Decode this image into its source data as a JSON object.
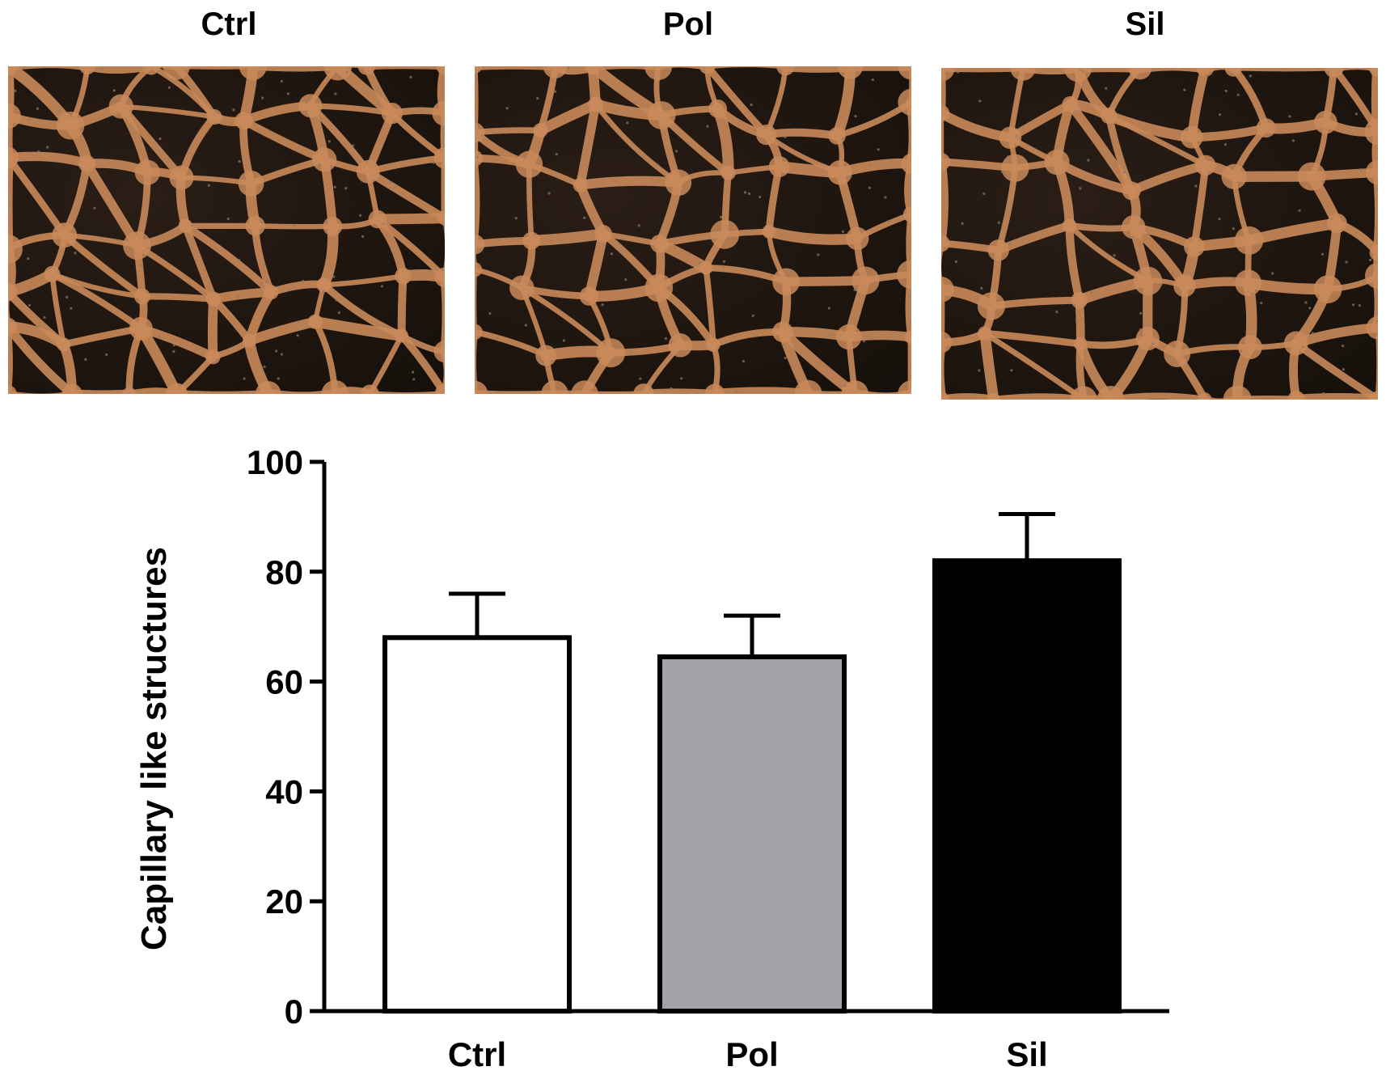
{
  "micrographs": [
    {
      "label": "Ctrl"
    },
    {
      "label": "Pol"
    },
    {
      "label": "Sil"
    }
  ],
  "colors": {
    "network": "#c98a5a",
    "background": "#1f1610",
    "ctrl_fill": "#ffffff",
    "pol_fill": "#a3a2a7",
    "sil_fill": "#000000",
    "stroke": "#000000"
  },
  "chart_data": {
    "type": "bar",
    "title": "",
    "xlabel": "",
    "ylabel": "Capillary like structures",
    "categories": [
      "Ctrl",
      "Pol",
      "Sil"
    ],
    "values": [
      68,
      64.5,
      82
    ],
    "errors": [
      8,
      7.5,
      8.5
    ],
    "ylim": [
      0,
      100
    ],
    "yticks": [
      0,
      20,
      40,
      60,
      80,
      100
    ],
    "grid": false,
    "legend": "none"
  }
}
